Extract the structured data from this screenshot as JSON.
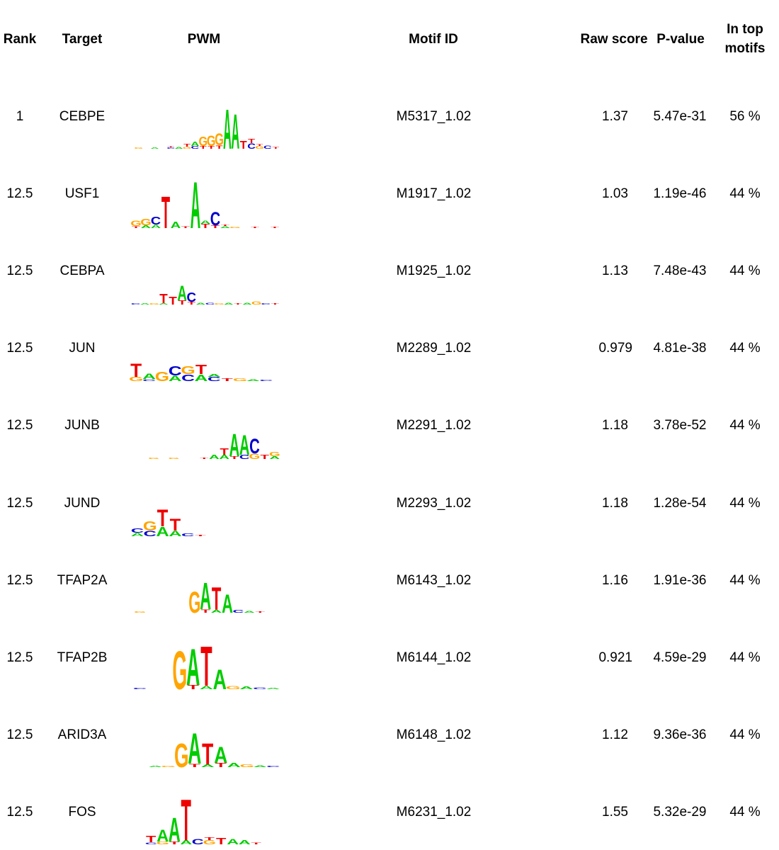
{
  "colors": {
    "A": "#00cc00",
    "C": "#0000cc",
    "G": "#ffa500",
    "T": "#ee0000"
  },
  "header": {
    "rank": "Rank",
    "target": "Target",
    "pwm": "PWM",
    "motif_id": "Motif ID",
    "raw_score": "Raw score",
    "p_value": "P-value",
    "in_top_line1": "In top",
    "in_top_line2": "motifs"
  },
  "rows": [
    {
      "rank": "1",
      "target": "CEBPE",
      "motif_id": "M5317_1.02",
      "raw_score": "1.37",
      "p_value": "5.47e-31",
      "in_top": "56 %",
      "logo": [
        "G",
        "C",
        "A",
        "T",
        "A",
        "A",
        "T",
        "C",
        "G",
        "C",
        "G",
        "T",
        "A",
        "C",
        "G",
        "G",
        "A",
        "A",
        "T",
        "T",
        "A",
        "T",
        "C",
        "A",
        "C",
        "G",
        "T"
      ]
    },
    {
      "rank": "12.5",
      "target": "USF1",
      "motif_id": "M1917_1.02",
      "raw_score": "1.03",
      "p_value": "1.19e-46",
      "in_top": "44 %",
      "logo": [
        "G",
        "C",
        "T",
        "A",
        "C",
        "A",
        "T",
        "G",
        "A",
        "C",
        "A",
        "T",
        "C",
        "A",
        "G",
        "T",
        "C",
        "A",
        "G",
        "T"
      ]
    },
    {
      "rank": "12.5",
      "target": "CEBPA",
      "motif_id": "M1925_1.02",
      "raw_score": "1.13",
      "p_value": "7.48e-43",
      "in_top": "44 %",
      "logo": [
        "A",
        "C",
        "G",
        "T",
        "T",
        "T",
        "G",
        "C",
        "A",
        "C",
        "T",
        "G",
        "A",
        "C",
        "G",
        "T",
        "A",
        "C"
      ]
    },
    {
      "rank": "12.5",
      "target": "JUN",
      "motif_id": "M2289_1.02",
      "raw_score": "0.979",
      "p_value": "4.81e-38",
      "in_top": "44 %",
      "logo": [
        "T",
        "G",
        "A",
        "C",
        "G",
        "T",
        "C",
        "A",
        "G",
        "A",
        "T",
        "C"
      ]
    },
    {
      "rank": "12.5",
      "target": "JUNB",
      "motif_id": "M2291_1.02",
      "raw_score": "1.18",
      "p_value": "3.78e-52",
      "in_top": "44 %",
      "logo": [
        "G",
        "T",
        "A",
        "A",
        "C",
        "T",
        "G",
        "A",
        "C"
      ]
    },
    {
      "rank": "12.5",
      "target": "JUND",
      "motif_id": "M2293_1.02",
      "raw_score": "1.18",
      "p_value": "1.28e-54",
      "in_top": "44 %",
      "logo": [
        "A",
        "G",
        "C",
        "T",
        "A",
        "T",
        "G",
        "C"
      ]
    },
    {
      "rank": "12.5",
      "target": "TFAP2A",
      "motif_id": "M6143_1.02",
      "raw_score": "1.16",
      "p_value": "1.91e-36",
      "in_top": "44 %",
      "logo": [
        "G",
        "A",
        "T",
        "A",
        "C",
        "G",
        "T",
        "A"
      ]
    },
    {
      "rank": "12.5",
      "target": "TFAP2B",
      "motif_id": "M6144_1.02",
      "raw_score": "0.921",
      "p_value": "4.59e-29",
      "in_top": "44 %",
      "logo": [
        "G",
        "A",
        "T",
        "A",
        "C",
        "G",
        "T",
        "A",
        "C",
        "G"
      ]
    },
    {
      "rank": "12.5",
      "target": "ARID3A",
      "motif_id": "M6148_1.02",
      "raw_score": "1.12",
      "p_value": "9.36e-36",
      "in_top": "44 %",
      "logo": [
        "G",
        "A",
        "T",
        "A",
        "C",
        "G",
        "T",
        "A",
        "C",
        "G"
      ]
    },
    {
      "rank": "12.5",
      "target": "FOS",
      "motif_id": "M6231_1.02",
      "raw_score": "1.55",
      "p_value": "5.32e-29",
      "in_top": "44 %",
      "logo": [
        "T",
        "A",
        "A",
        "T",
        "C",
        "G",
        "T",
        "A",
        "C",
        "A",
        "T"
      ]
    }
  ]
}
